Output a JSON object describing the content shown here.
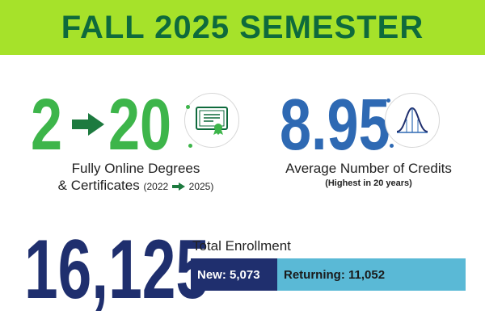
{
  "header": {
    "title": "FALL 2025 SEMESTER"
  },
  "online_programs": {
    "from_count": "2",
    "to_count": "20",
    "label_line1": "Fully Online Degrees",
    "label_line2": "& Certificates",
    "range_start": "(2022",
    "range_end": "2025)",
    "icon": "certificate-icon"
  },
  "credits": {
    "value": "8.95",
    "label": "Average Number of Credits",
    "sublabel": "(Highest in 20 years)",
    "icon": "bell-curve-icon"
  },
  "enrollment": {
    "total": "16,125",
    "label": "Total Enrollment",
    "new_label": "New:",
    "new_value": "5,073",
    "returning_label": "Returning:",
    "returning_value": "11,052",
    "new_count": 5073,
    "returning_count": 11052
  },
  "colors": {
    "banner": "#a6e22a",
    "banner_text": "#0e6a3c",
    "green": "#3db54a",
    "blue": "#2e69b3",
    "navy": "#1f2f6e",
    "light_blue": "#5ab9d6"
  }
}
